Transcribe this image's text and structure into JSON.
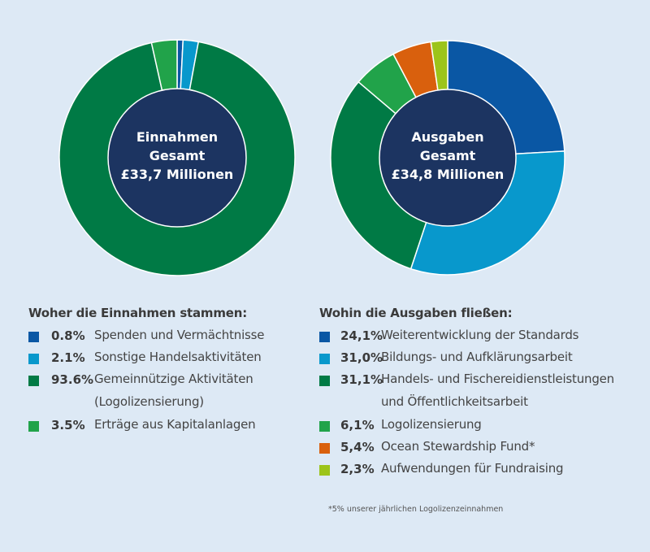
{
  "chart_data": [
    {
      "type": "pie",
      "variant": "donut",
      "title_lines": [
        "Einnahmen",
        "Gesamt",
        "£33,7 Millionen"
      ],
      "legend_title": "Woher die Einnahmen stammen:",
      "start_angle": "12 o'clock, clockwise",
      "slices": [
        {
          "pct_label": "0.8%",
          "value": 0.8,
          "label": "Spenden und Vermächtnisse",
          "color": "#0a57a4"
        },
        {
          "pct_label": "2.1%",
          "value": 2.1,
          "label": "Sonstige Handelsaktivitäten",
          "color": "#0898cc"
        },
        {
          "pct_label": "93.6%",
          "value": 93.6,
          "label": "Gemeinnützige Aktivitäten",
          "label2": "(Logolizensierung)",
          "color": "#007a45"
        },
        {
          "pct_label": "3.5%",
          "value": 3.5,
          "label": "Erträge aus Kapitalanlagen",
          "color": "#21a34a"
        }
      ]
    },
    {
      "type": "pie",
      "variant": "donut",
      "title_lines": [
        "Ausgaben",
        "Gesamt",
        "£34,8 Millionen"
      ],
      "legend_title": "Wohin die Ausgaben fließen:",
      "start_angle": "12 o'clock, clockwise",
      "slices": [
        {
          "pct_label": "24,1%",
          "value": 24.1,
          "label": "Weiterentwicklung der Standards",
          "color": "#0a57a4"
        },
        {
          "pct_label": "31,0%",
          "value": 31.0,
          "label": "Bildungs- und Aufklärungsarbeit",
          "color": "#0898cc"
        },
        {
          "pct_label": "31,1%",
          "value": 31.1,
          "label": "Handels- und Fischereidienstleistungen",
          "label2": "und Öffentlichkeitsarbeit",
          "color": "#007a45"
        },
        {
          "pct_label": "6,1%",
          "value": 6.1,
          "label": "Logolizensierung",
          "color": "#21a34a"
        },
        {
          "pct_label": "5,4%",
          "value": 5.4,
          "label": "Ocean Stewardship Fund*",
          "color": "#d9600d"
        },
        {
          "pct_label": "2,3%",
          "value": 2.3,
          "label": "Aufwendungen für Fundraising",
          "color": "#9cc41a"
        }
      ],
      "footnote": "*5% unserer jährlichen Logolizenzeinnahmen"
    }
  ],
  "colors": {
    "background": "#dde9f5",
    "center": "#1c3461"
  }
}
